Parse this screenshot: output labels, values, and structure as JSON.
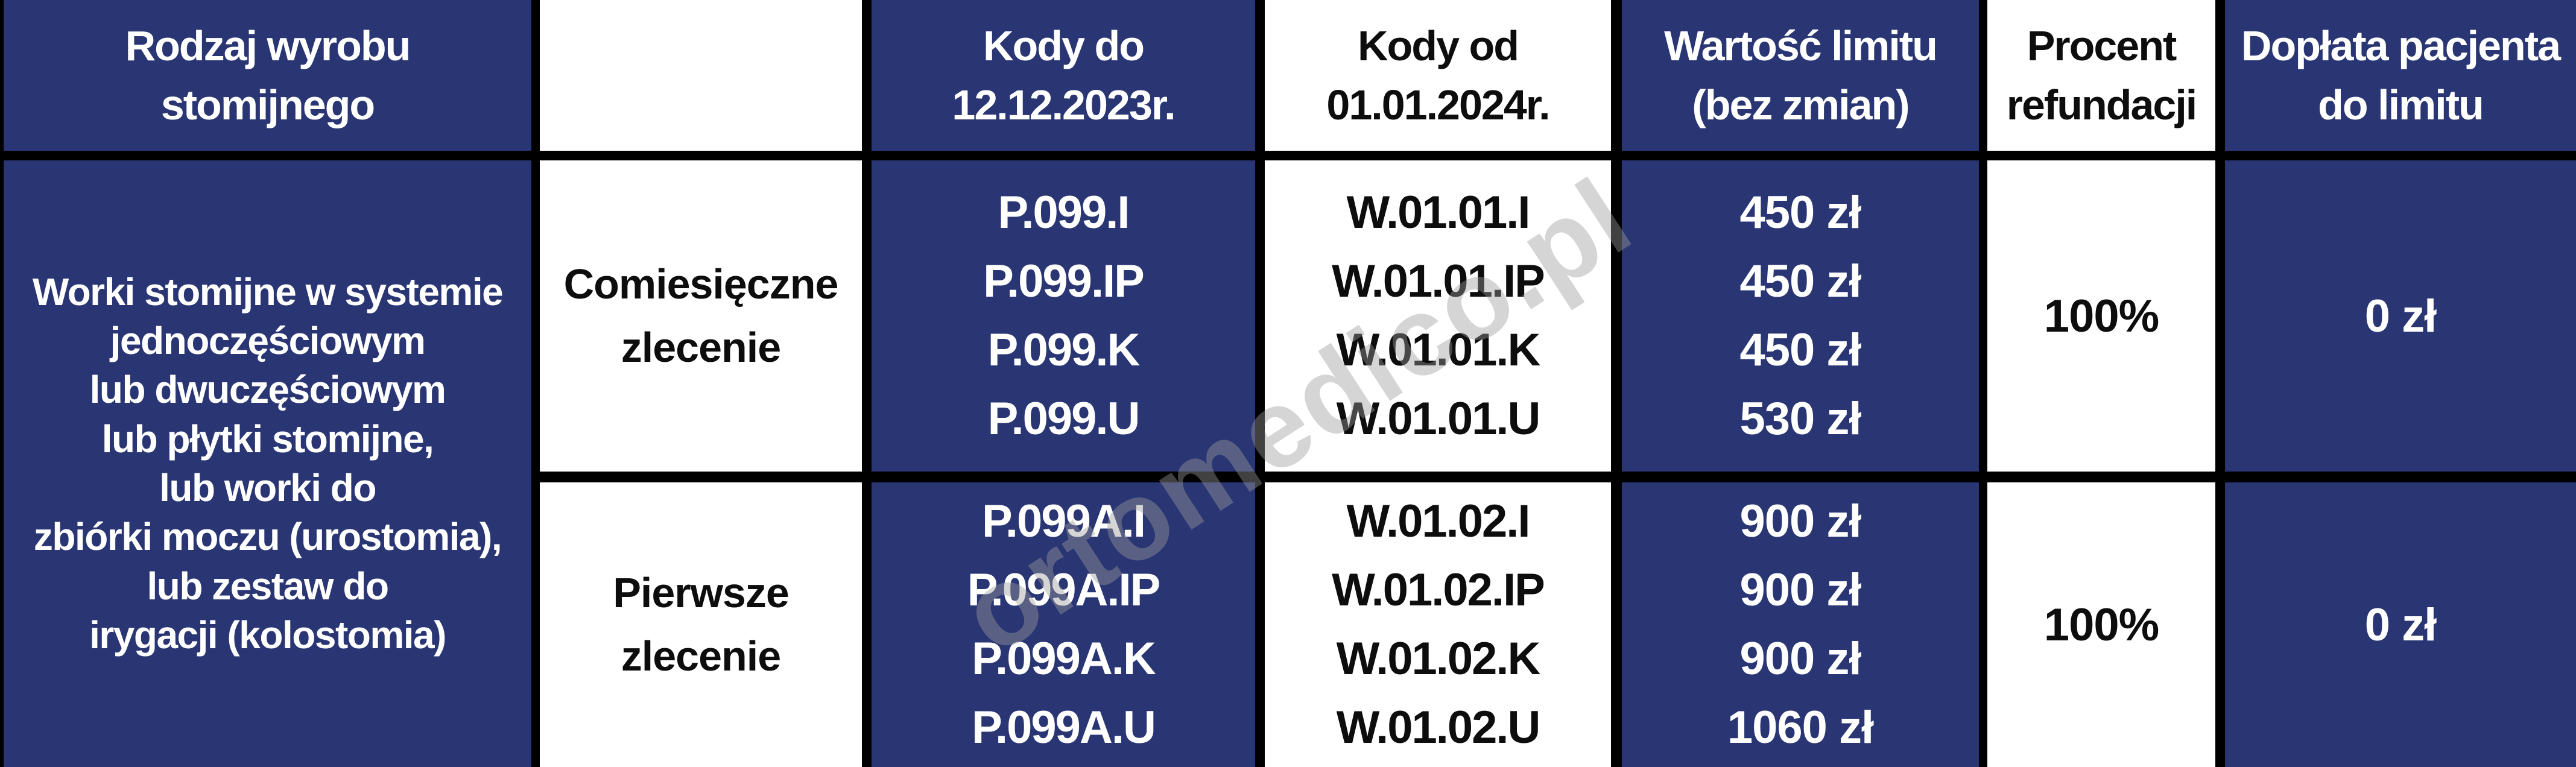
{
  "watermark": "ortomedico.pl",
  "colors": {
    "navy_cell": "#2a3674",
    "white_cell": "#ffffff",
    "border": "#000000",
    "light_text": "#ffffff",
    "dark_text": "#0d0d0d",
    "watermark_gray": "#9b9b9b"
  },
  "header": {
    "col1": "Rodzaj wyrobu\nstomijnego",
    "col2": "",
    "col3": "Kody do\n12.12.2023r.",
    "col4": "Kody od\n01.01.2024r.",
    "col5": "Wartość limitu\n(bez zmian)",
    "col6": "Procent\nrefundacji",
    "col7": "Dopłata pacjenta\ndo limitu"
  },
  "product": {
    "lines": [
      "Worki stomijne w systemie",
      "jednoczęściowym",
      "lub dwuczęściowym",
      "lub płytki stomijne,",
      "lub worki do",
      "zbiórki moczu (urostomia),",
      "lub zestaw do",
      "irygacji (kolostomia)"
    ]
  },
  "rows": [
    {
      "order_type": "Comiesięczne\nzlecenie",
      "codes_old": [
        "P.099.I",
        "P.099.IP",
        "P.099.K",
        "P.099.U"
      ],
      "codes_new": [
        "W.01.01.I",
        "W.01.01.IP",
        "W.01.01.K",
        "W.01.01.U"
      ],
      "limits": [
        "450 zł",
        "450 zł",
        "450 zł",
        "530 zł"
      ],
      "refund_percent": "100%",
      "patient_copay": "0 zł"
    },
    {
      "order_type": "Pierwsze\nzlecenie",
      "codes_old": [
        "P.099A.I",
        "P.099A.IP",
        "P.099A.K",
        "P.099A.U"
      ],
      "codes_new": [
        "W.01.02.I",
        "W.01.02.IP",
        "W.01.02.K",
        "W.01.02.U"
      ],
      "limits": [
        "900 zł",
        "900 zł",
        "900 zł",
        "1060 zł"
      ],
      "refund_percent": "100%",
      "patient_copay": "0 zł"
    }
  ],
  "chart_data": {
    "type": "table",
    "columns": [
      "Rodzaj wyrobu stomijnego",
      "",
      "Kody do 12.12.2023r.",
      "Kody od 01.01.2024r.",
      "Wartość limitu (bez zmian)",
      "Procent refundacji",
      "Dopłata pacjenta do limitu"
    ],
    "rows": [
      [
        "Worki stomijne w systemie jednoczęściowym lub dwuczęściowym lub płytki stomijne, lub worki do zbiórki moczu (urostomia), lub zestaw do irygacji (kolostomia)",
        "Comiesięczne zlecenie",
        "P.099.I / P.099.IP / P.099.K / P.099.U",
        "W.01.01.I / W.01.01.IP / W.01.01.K / W.01.01.U",
        "450 zł / 450 zł / 450 zł / 530 zł",
        "100%",
        "0 zł"
      ],
      [
        "Worki stomijne w systemie jednoczęściowym lub dwuczęściowym lub płytki stomijne, lub worki do zbiórki moczu (urostomia), lub zestaw do irygacji (kolostomia)",
        "Pierwsze zlecenie",
        "P.099A.I / P.099A.IP / P.099A.K / P.099A.U",
        "W.01.02.I / W.01.02.IP / W.01.02.K / W.01.02.U",
        "900 zł / 900 zł / 900 zł / 1060 zł",
        "100%",
        "0 zł"
      ]
    ]
  }
}
